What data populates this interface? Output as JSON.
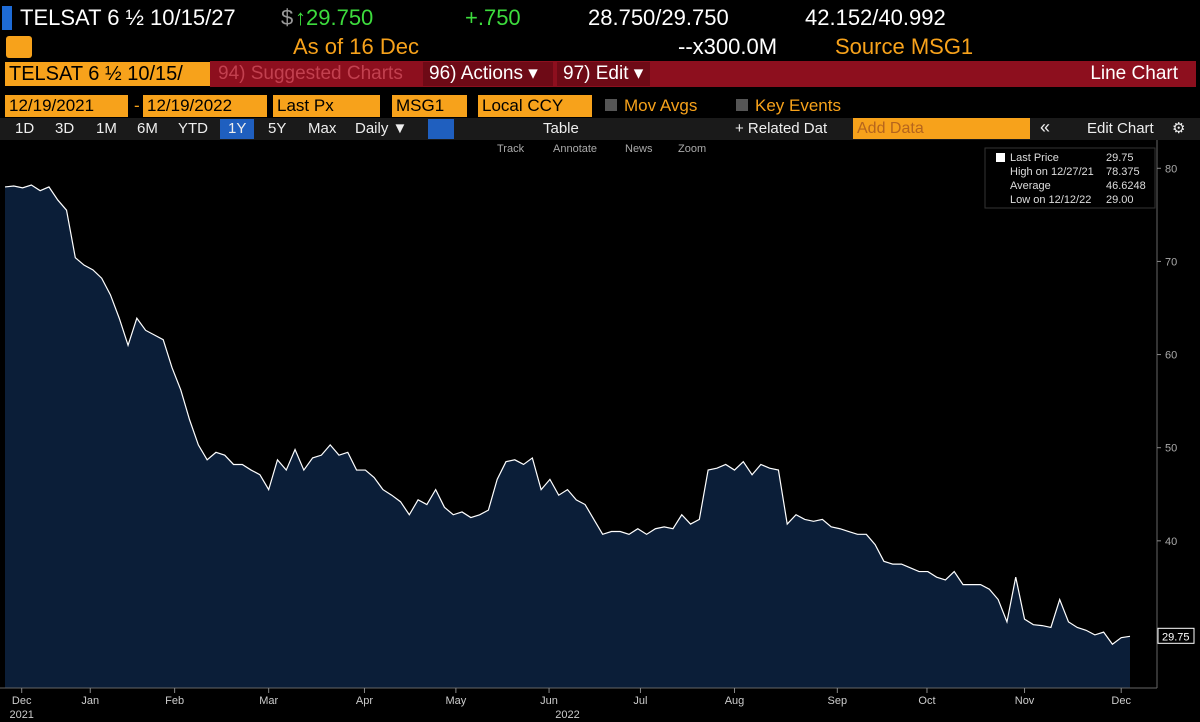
{
  "header": {
    "security": "TELSAT 6 ½ 10/15/27",
    "price_prefix": "$",
    "price": "↑29.750",
    "change": "+.750",
    "bid_ask": "28.750/29.750",
    "yields": "42.152/40.992",
    "as_of": "As of 16 Dec",
    "size": "--x300.0M",
    "source": "Source MSG1"
  },
  "toolbar": {
    "security_field": "TELSAT 6 ½ 10/15/",
    "suggested": "94) Suggested Charts",
    "actions": "96) Actions ▾",
    "edit": "97) Edit ▾",
    "chart_type": "Line Chart"
  },
  "settings": {
    "start": "12/19/2021",
    "dash": "-",
    "end": "12/19/2022",
    "field": "Last Px",
    "source": "MSG1",
    "currency": "Local CCY",
    "mov_avgs": "Mov Avgs",
    "key_events": "Key Events"
  },
  "periods": [
    "1D",
    "3D",
    "1M",
    "6M",
    "YTD",
    "1Y",
    "5Y",
    "Max"
  ],
  "active_period": "1Y",
  "controls": {
    "frequency": "Daily ▼",
    "table": "Table",
    "related": "+ Related Dat",
    "add_data": "Add Data",
    "collapse": "«",
    "edit_chart": "Edit Chart"
  },
  "tools": [
    "Track",
    "Annotate",
    "News",
    "Zoom"
  ],
  "chart_data": {
    "type": "area",
    "color": "#ffffff",
    "fill": "#0b1e38",
    "grid": false,
    "values": [
      78.0,
      78.1,
      77.9,
      78.2,
      77.6,
      78.0,
      76.6,
      75.5,
      70.4,
      69.6,
      69.1,
      68.2,
      66.4,
      63.9,
      61.0,
      63.9,
      62.6,
      62.1,
      61.6,
      58.6,
      56.2,
      53.0,
      50.3,
      48.7,
      49.5,
      49.2,
      48.2,
      48.2,
      47.6,
      47.1,
      45.5,
      48.7,
      47.6,
      49.8,
      47.6,
      48.9,
      49.2,
      50.3,
      49.2,
      49.5,
      47.6,
      47.6,
      46.8,
      45.5,
      44.9,
      44.2,
      42.8,
      44.4,
      43.9,
      45.5,
      43.6,
      42.8,
      43.1,
      42.5,
      42.8,
      43.3,
      46.6,
      48.5,
      48.7,
      48.2,
      48.9,
      45.5,
      46.6,
      44.9,
      45.5,
      44.4,
      43.9,
      42.3,
      40.7,
      41.0,
      41.0,
      40.7,
      41.3,
      40.7,
      41.3,
      41.5,
      41.3,
      42.8,
      41.8,
      42.3,
      47.6,
      47.8,
      48.2,
      47.6,
      48.5,
      47.1,
      48.2,
      47.8,
      47.6,
      41.8,
      42.8,
      42.3,
      42.1,
      42.3,
      41.5,
      41.3,
      41.0,
      40.7,
      40.7,
      39.6,
      37.8,
      37.5,
      37.5,
      37.1,
      36.7,
      36.7,
      36.1,
      35.8,
      36.7,
      35.3,
      35.3,
      35.3,
      34.8,
      33.7,
      31.3,
      36.1,
      31.6,
      31.0,
      30.9,
      30.7,
      33.7,
      31.3,
      30.7,
      30.4,
      29.9,
      30.2,
      28.9,
      29.6,
      29.75
    ],
    "xlim": [
      0,
      128
    ],
    "xticks": [
      {
        "value": 1.9,
        "label": "Dec"
      },
      {
        "value": 9.7,
        "label": "Jan"
      },
      {
        "value": 19.3,
        "label": "Feb"
      },
      {
        "value": 30.0,
        "label": "Mar"
      },
      {
        "value": 40.9,
        "label": "Apr"
      },
      {
        "value": 51.3,
        "label": "May"
      },
      {
        "value": 61.9,
        "label": "Jun"
      },
      {
        "value": 72.3,
        "label": "Jul"
      },
      {
        "value": 83.0,
        "label": "Aug"
      },
      {
        "value": 94.7,
        "label": "Sep"
      },
      {
        "value": 104.9,
        "label": "Oct"
      },
      {
        "value": 116.0,
        "label": "Nov"
      },
      {
        "value": 127.0,
        "label": "Dec"
      }
    ],
    "years": [
      "2021",
      "2022"
    ],
    "ylim": [
      24.2,
      82.5
    ],
    "yticks": [
      40,
      50,
      60,
      70,
      80
    ],
    "legend": [
      [
        "Last Price",
        "29.75"
      ],
      [
        "High on 12/27/21",
        "78.375"
      ],
      [
        "Average",
        "46.6248"
      ],
      [
        "Low on 12/12/22",
        "29.00"
      ]
    ]
  }
}
